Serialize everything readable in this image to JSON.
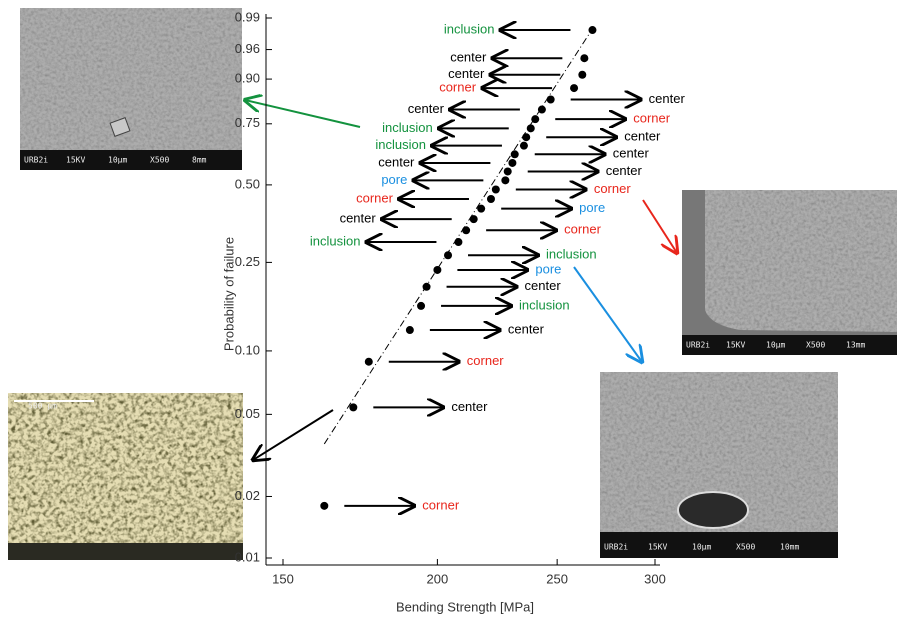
{
  "chart_data": {
    "type": "scatter",
    "x_label": "Bending Strength [MPa]",
    "y_label": "Probability of failure",
    "x_scale": "log",
    "y_scale": "weibull",
    "xlim": [
      150,
      300
    ],
    "xticks": [
      150,
      200,
      250,
      300
    ],
    "ylim": [
      0.01,
      0.99
    ],
    "yticks": [
      0.01,
      0.02,
      0.05,
      {
        "value": 0.1,
        "label": "0.10"
      },
      0.25,
      {
        "value": 0.5,
        "label": "0.50"
      },
      0.75,
      {
        "value": 0.9,
        "label": "0.90"
      },
      0.96,
      0.99
    ],
    "color": "#000000",
    "x": [
      162,
      171,
      176,
      190,
      194,
      196,
      200,
      204,
      208,
      211,
      214,
      217,
      221,
      223,
      227,
      228,
      230,
      231,
      235,
      236,
      238,
      240,
      243,
      247,
      258,
      262,
      263,
      267
    ],
    "values": [
      0.018,
      0.054,
      0.089,
      0.125,
      0.161,
      0.196,
      0.232,
      0.268,
      0.304,
      0.339,
      0.375,
      0.411,
      0.446,
      0.482,
      0.518,
      0.554,
      0.589,
      0.625,
      0.661,
      0.696,
      0.732,
      0.768,
      0.804,
      0.839,
      0.875,
      0.911,
      0.946,
      0.982
    ],
    "annotations": [
      "corner",
      "center",
      "corner",
      "center",
      "inclusion",
      "center",
      "pore",
      "inclusion",
      "inclusion",
      "corner",
      "center",
      "pore",
      "corner",
      "corner",
      "pore",
      "center",
      "center",
      "center",
      "inclusion",
      "center",
      "inclusion",
      "corner",
      "center",
      "center",
      "corner",
      "center",
      "center",
      "inclusion"
    ],
    "annotation_colors": [
      "#e8261c",
      "#000000",
      "#e8261c",
      "#000000",
      "#13923e",
      "#000000",
      "#1a8fe0",
      "#13923e",
      "#13923e",
      "#e8261c",
      "#000000",
      "#1a8fe0",
      "#e8261c",
      "#e8261c",
      "#1a8fe0",
      "#000000",
      "#000000",
      "#000000",
      "#13923e",
      "#000000",
      "#13923e",
      "#e8261c",
      "#000000",
      "#000000",
      "#e8261c",
      "#000000",
      "#000000",
      "#13923e"
    ],
    "fit_line": {
      "x": [
        162,
        267
      ],
      "values": [
        0.036,
        0.983
      ]
    }
  },
  "micrographs": [
    {
      "caption": [
        "URB2i",
        "15KV",
        "10µm",
        "X500",
        "8mm"
      ]
    },
    {
      "caption": [
        "URB2i",
        "15KV",
        "10µm",
        "X500",
        "13mm"
      ]
    },
    {
      "caption": [
        "URB2i",
        "15KV",
        "10µm",
        "X500",
        "10mm"
      ]
    },
    {
      "caption": [
        "500 µm"
      ]
    }
  ]
}
